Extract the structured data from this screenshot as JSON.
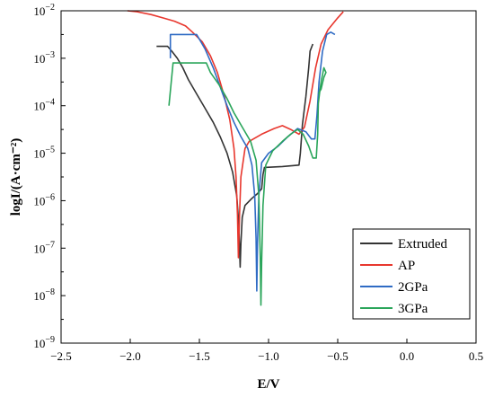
{
  "chart_data": {
    "type": "line",
    "xlabel": "E/V",
    "ylabel": "logI/(A·cm⁻²)",
    "xlim": [
      -2.5,
      0.5
    ],
    "ylim_exponents": [
      -9,
      -2
    ],
    "y_scale": "log",
    "x_ticks": [
      {
        "value": -2.5,
        "label": "−2.5"
      },
      {
        "value": -2.0,
        "label": "−2.0"
      },
      {
        "value": -1.5,
        "label": "−1.5"
      },
      {
        "value": -1.0,
        "label": "−1.0"
      },
      {
        "value": -0.5,
        "label": "−0.5"
      },
      {
        "value": 0.0,
        "label": "0.0"
      },
      {
        "value": 0.5,
        "label": "0.5"
      }
    ],
    "y_ticks": [
      {
        "exp": -2,
        "base": "10",
        "sup": "−2"
      },
      {
        "exp": -3,
        "base": "10",
        "sup": "−3"
      },
      {
        "exp": -4,
        "base": "10",
        "sup": "−4"
      },
      {
        "exp": -5,
        "base": "10",
        "sup": "−5"
      },
      {
        "exp": -6,
        "base": "10",
        "sup": "−6"
      },
      {
        "exp": -7,
        "base": "10",
        "sup": "−7"
      },
      {
        "exp": -8,
        "base": "10",
        "sup": "−8"
      },
      {
        "exp": -9,
        "base": "10",
        "sup": "−9"
      }
    ],
    "grid": false,
    "legend_position": "bottom-right",
    "series": [
      {
        "name": "Extruded",
        "color": "#333333",
        "points": [
          [
            -1.81,
            -2.75
          ],
          [
            -1.73,
            -2.75
          ],
          [
            -1.7,
            -2.85
          ],
          [
            -1.66,
            -3.0
          ],
          [
            -1.62,
            -3.2
          ],
          [
            -1.58,
            -3.45
          ],
          [
            -1.52,
            -3.75
          ],
          [
            -1.46,
            -4.05
          ],
          [
            -1.4,
            -4.35
          ],
          [
            -1.35,
            -4.65
          ],
          [
            -1.3,
            -5.0
          ],
          [
            -1.26,
            -5.4
          ],
          [
            -1.23,
            -5.9
          ],
          [
            -1.215,
            -6.5
          ],
          [
            -1.21,
            -7.0
          ],
          [
            -1.205,
            -7.4
          ],
          [
            -1.2,
            -6.9
          ],
          [
            -1.19,
            -6.35
          ],
          [
            -1.17,
            -6.1
          ],
          [
            -1.12,
            -5.95
          ],
          [
            -1.08,
            -5.85
          ],
          [
            -1.05,
            -5.75
          ],
          [
            -1.04,
            -5.45
          ],
          [
            -1.03,
            -5.3
          ],
          [
            -0.9,
            -5.28
          ],
          [
            -0.78,
            -5.25
          ],
          [
            -0.77,
            -5.0
          ],
          [
            -0.755,
            -4.4
          ],
          [
            -0.73,
            -3.8
          ],
          [
            -0.71,
            -3.2
          ],
          [
            -0.7,
            -2.85
          ],
          [
            -0.68,
            -2.7
          ]
        ]
      },
      {
        "name": "AP",
        "color": "#e8372e",
        "points": [
          [
            -2.02,
            -2.0
          ],
          [
            -1.95,
            -2.02
          ],
          [
            -1.85,
            -2.08
          ],
          [
            -1.75,
            -2.16
          ],
          [
            -1.68,
            -2.22
          ],
          [
            -1.6,
            -2.32
          ],
          [
            -1.55,
            -2.45
          ],
          [
            -1.48,
            -2.65
          ],
          [
            -1.42,
            -2.95
          ],
          [
            -1.37,
            -3.3
          ],
          [
            -1.32,
            -3.8
          ],
          [
            -1.28,
            -4.3
          ],
          [
            -1.25,
            -4.9
          ],
          [
            -1.235,
            -5.5
          ],
          [
            -1.225,
            -6.3
          ],
          [
            -1.218,
            -7.2
          ],
          [
            -1.21,
            -6.3
          ],
          [
            -1.2,
            -5.5
          ],
          [
            -1.17,
            -4.9
          ],
          [
            -1.14,
            -4.75
          ],
          [
            -1.05,
            -4.6
          ],
          [
            -0.96,
            -4.48
          ],
          [
            -0.9,
            -4.42
          ],
          [
            -0.84,
            -4.5
          ],
          [
            -0.78,
            -4.6
          ],
          [
            -0.74,
            -4.45
          ],
          [
            -0.7,
            -3.9
          ],
          [
            -0.66,
            -3.2
          ],
          [
            -0.62,
            -2.7
          ],
          [
            -0.57,
            -2.4
          ],
          [
            -0.5,
            -2.15
          ],
          [
            -0.46,
            -2.02
          ]
        ]
      },
      {
        "name": "2GPa",
        "color": "#2f6bc4",
        "points": [
          [
            -1.71,
            -3.0
          ],
          [
            -1.71,
            -2.5
          ],
          [
            -1.52,
            -2.5
          ],
          [
            -1.46,
            -2.8
          ],
          [
            -1.4,
            -3.2
          ],
          [
            -1.35,
            -3.6
          ],
          [
            -1.3,
            -4.0
          ],
          [
            -1.25,
            -4.35
          ],
          [
            -1.2,
            -4.65
          ],
          [
            -1.15,
            -4.9
          ],
          [
            -1.12,
            -5.25
          ],
          [
            -1.1,
            -5.9
          ],
          [
            -1.09,
            -6.8
          ],
          [
            -1.085,
            -7.9
          ],
          [
            -1.08,
            -6.9
          ],
          [
            -1.07,
            -5.9
          ],
          [
            -1.05,
            -5.2
          ],
          [
            -1.0,
            -5.0
          ],
          [
            -0.93,
            -4.85
          ],
          [
            -0.86,
            -4.65
          ],
          [
            -0.79,
            -4.48
          ],
          [
            -0.73,
            -4.55
          ],
          [
            -0.69,
            -4.7
          ],
          [
            -0.665,
            -4.7
          ],
          [
            -0.65,
            -4.2
          ],
          [
            -0.635,
            -3.5
          ],
          [
            -0.61,
            -2.85
          ],
          [
            -0.58,
            -2.5
          ],
          [
            -0.55,
            -2.45
          ],
          [
            -0.52,
            -2.5
          ]
        ]
      },
      {
        "name": "3GPa",
        "color": "#2aa55a",
        "points": [
          [
            -1.72,
            -4.0
          ],
          [
            -1.69,
            -3.1
          ],
          [
            -1.56,
            -3.1
          ],
          [
            -1.45,
            -3.1
          ],
          [
            -1.42,
            -3.3
          ],
          [
            -1.36,
            -3.55
          ],
          [
            -1.3,
            -3.85
          ],
          [
            -1.25,
            -4.15
          ],
          [
            -1.19,
            -4.45
          ],
          [
            -1.13,
            -4.75
          ],
          [
            -1.09,
            -5.15
          ],
          [
            -1.07,
            -5.9
          ],
          [
            -1.06,
            -7.2
          ],
          [
            -1.055,
            -8.2
          ],
          [
            -1.05,
            -7.3
          ],
          [
            -1.04,
            -6.1
          ],
          [
            -1.02,
            -5.25
          ],
          [
            -0.97,
            -4.95
          ],
          [
            -0.9,
            -4.75
          ],
          [
            -0.84,
            -4.6
          ],
          [
            -0.79,
            -4.5
          ],
          [
            -0.75,
            -4.6
          ],
          [
            -0.71,
            -4.85
          ],
          [
            -0.68,
            -5.1
          ],
          [
            -0.655,
            -5.1
          ],
          [
            -0.645,
            -4.6
          ],
          [
            -0.64,
            -3.95
          ],
          [
            -0.63,
            -3.7
          ],
          [
            -0.62,
            -3.5
          ],
          [
            -0.6,
            -3.2
          ],
          [
            -0.585,
            -3.3
          ],
          [
            -0.6,
            -3.4
          ],
          [
            -0.62,
            -3.65
          ],
          [
            -0.64,
            -3.75
          ]
        ]
      }
    ]
  }
}
